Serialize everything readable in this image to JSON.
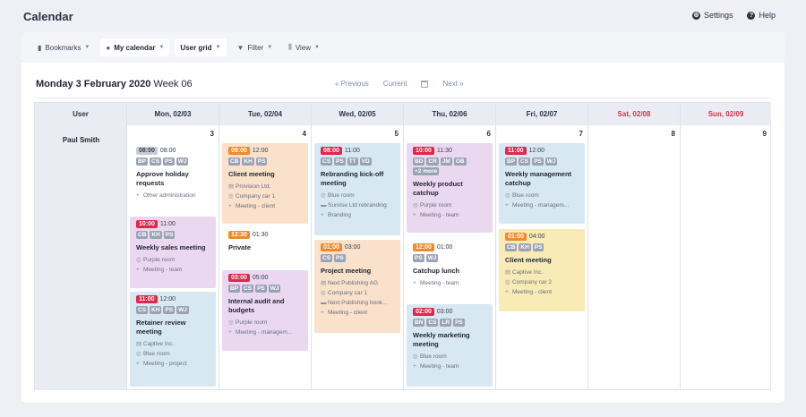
{
  "app": {
    "title": "Calendar",
    "settings": "Settings",
    "help": "Help"
  },
  "toolbar": {
    "bookmarks": "Bookmarks",
    "my_calendar": "My calendar",
    "user_grid": "User grid",
    "filter": "Filter",
    "view": "View"
  },
  "header": {
    "date": "Monday 3 February 2020",
    "week": "Week 06",
    "previous": "« Previous",
    "current": "Current",
    "next": "Next »"
  },
  "grid": {
    "user_header": "User",
    "days": [
      "Mon, 02/03",
      "Tue, 02/04",
      "Wed, 02/05",
      "Thu, 02/06",
      "Fri, 02/07",
      "Sat, 02/08",
      "Sun, 02/09"
    ],
    "day_numbers": [
      "3",
      "4",
      "5",
      "6",
      "7",
      "8",
      "9"
    ],
    "user": "Paul Smith"
  },
  "events": {
    "mon1": {
      "start": "08:00",
      "end": "08:00",
      "tags": [
        "BP",
        "CS",
        "PS",
        "WJ"
      ],
      "title": "Approve holiday requests",
      "details": [
        "Other administration"
      ]
    },
    "mon2": {
      "start": "10:00",
      "end": "11:00",
      "tags": [
        "CB",
        "KH",
        "PS"
      ],
      "title": "Weekly sales meeting",
      "details": [
        "Purple room",
        "Meeting - team"
      ]
    },
    "mon3": {
      "start": "11:00",
      "end": "12:00",
      "tags": [
        "CS",
        "KH",
        "PS",
        "WJ"
      ],
      "title": "Retainer review meeting",
      "details": [
        "Captive Inc.",
        "Blue room",
        "Meeting - project"
      ]
    },
    "tue1": {
      "start": "09:00",
      "end": "12:00",
      "tags": [
        "CB",
        "KH",
        "PS"
      ],
      "title": "Client meeting",
      "details": [
        "Provision Ltd.",
        "Company car 1",
        "Meeting - client"
      ]
    },
    "tue2": {
      "start": "12:30",
      "end": "01:30",
      "title": "Private"
    },
    "tue3": {
      "start": "03:00",
      "end": "05:00",
      "tags": [
        "BP",
        "CS",
        "PS",
        "WJ"
      ],
      "title": "Internal audit and budgets",
      "details": [
        "Purple room",
        "Meeting - managem..."
      ]
    },
    "wed1": {
      "start": "08:00",
      "end": "11:00",
      "tags": [
        "CS",
        "PS",
        "TT",
        "VD"
      ],
      "title": "Rebranding kick-off meeting",
      "details": [
        "Blue room",
        "Sunrise Ltd rebranding",
        "Branding"
      ]
    },
    "wed2": {
      "start": "01:00",
      "end": "03:00",
      "tags": [
        "CS",
        "PS"
      ],
      "title": "Project meeting",
      "details": [
        "Next Publishing AG",
        "Company car 1",
        "Next Publishing book...",
        "Meeting - client"
      ]
    },
    "thu1": {
      "start": "10:00",
      "end": "11:30",
      "tags": [
        "BD",
        "CR",
        "JM",
        "OB",
        "+2 more"
      ],
      "title": "Weekly product catchup",
      "details": [
        "Purple room",
        "Meeting - team"
      ]
    },
    "thu2": {
      "start": "12:00",
      "end": "01:00",
      "tags": [
        "PS",
        "WJ"
      ],
      "title": "Catchup lunch",
      "details": [
        "Meeting - team"
      ]
    },
    "thu3": {
      "start": "02:00",
      "end": "03:00",
      "tags": [
        "BN",
        "CS",
        "LR",
        "PS"
      ],
      "title": "Weekly marketing meeting",
      "details": [
        "Blue room",
        "Meeting - team"
      ]
    },
    "fri1": {
      "start": "11:00",
      "end": "12:00",
      "tags": [
        "BP",
        "CS",
        "PS",
        "WJ"
      ],
      "title": "Weekly management catchup",
      "details": [
        "Blue room",
        "Meeting - managem..."
      ]
    },
    "fri2": {
      "start": "01:00",
      "end": "04:00",
      "tags": [
        "CB",
        "KH",
        "PS"
      ],
      "title": "Client meeting",
      "details": [
        "Captive Inc.",
        "Company car 2",
        "Meeting - client"
      ]
    }
  },
  "colors": {
    "red": "#e0264a",
    "orange": "#f08a2c",
    "purple": "#ead8f0",
    "blue": "#d7e8f3",
    "peach": "#f9e1cb",
    "yellow": "#f9ebb5",
    "weekend": "#d9304b"
  }
}
